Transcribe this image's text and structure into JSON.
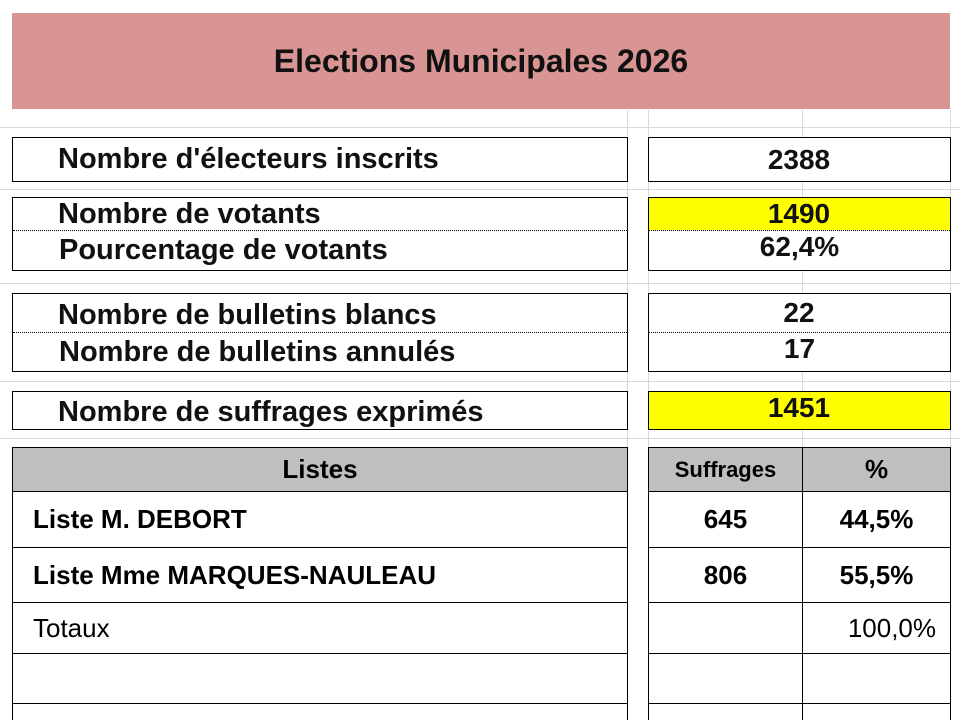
{
  "header": {
    "title": "Elections Municipales 2026"
  },
  "stats": [
    {
      "label": "Nombre d'électeurs inscrits",
      "value": "2388"
    },
    {
      "label": "Nombre de votants",
      "value": "1490"
    },
    {
      "label": "Pourcentage de votants",
      "value": "62,4%"
    },
    {
      "label": "Nombre de bulletins blancs",
      "value": "22"
    },
    {
      "label": "Nombre de bulletins annulés",
      "value": "17"
    },
    {
      "label": "Nombre de suffrages exprimés",
      "value": "1451"
    }
  ],
  "table": {
    "headers": [
      "Listes",
      "Suffrages",
      "%"
    ],
    "rows": [
      {
        "name": "Liste M. DEBORT",
        "votes": "645",
        "percent": "44,5%"
      },
      {
        "name": "Liste Mme MARQUES-NAULEAU",
        "votes": "806",
        "percent": "55,5%"
      },
      {
        "name": "Totaux",
        "percent": "100,0%"
      }
    ]
  }
}
